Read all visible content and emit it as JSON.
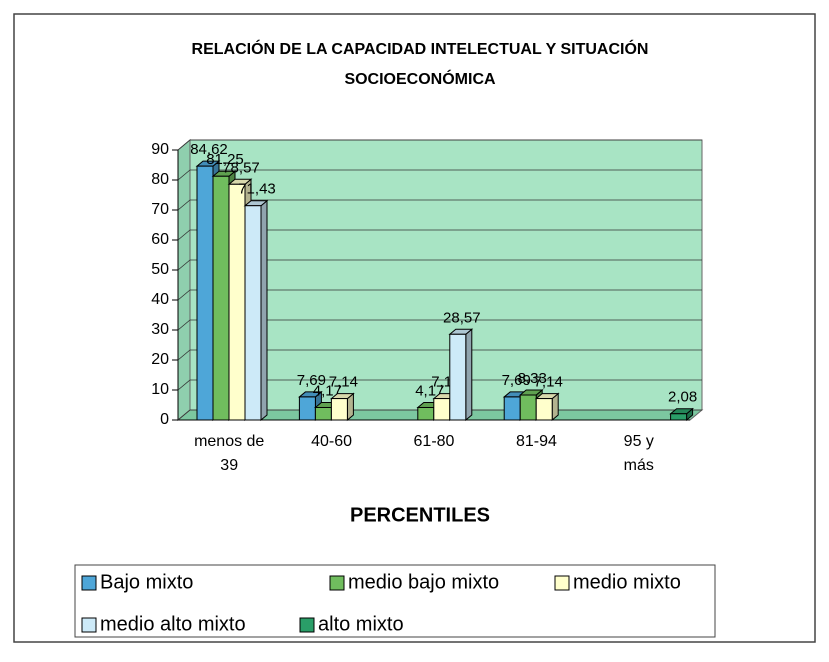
{
  "chart_data": {
    "type": "bar3d",
    "title": "RELACIÓN DE LA CAPACIDAD INTELECTUAL Y SITUACIÓN SOCIOECONÓMICA",
    "x_label": "PERCENTILES",
    "categories": [
      "menos de 39",
      "40-60",
      "61-80",
      "81-94",
      "95 y más"
    ],
    "series": [
      {
        "name": "Bajo mixto",
        "color": "#4ea6d8",
        "values": [
          84.62,
          7.69,
          null,
          7.69,
          null
        ],
        "value_labels": [
          "84,62",
          "7,69",
          null,
          "7,69",
          null
        ]
      },
      {
        "name": "medio bajo mixto",
        "color": "#70bd5e",
        "values": [
          81.25,
          4.17,
          4.17,
          8.33,
          null
        ],
        "value_labels": [
          "81,25",
          "4,17",
          "4,17",
          "8,33",
          null
        ]
      },
      {
        "name": "medio mixto",
        "color": "#ffffcc",
        "values": [
          78.57,
          7.14,
          7.14,
          7.14,
          null
        ],
        "value_labels": [
          "78,57",
          "7,14",
          "7,14",
          "7,14",
          null
        ]
      },
      {
        "name": "medio alto mixto",
        "color": "#cdeaf8",
        "values": [
          71.43,
          null,
          28.57,
          null,
          null
        ],
        "value_labels": [
          "71,43",
          null,
          "28,57",
          null,
          null
        ]
      },
      {
        "name": "alto mixto",
        "color": "#2a9e68",
        "values": [
          null,
          null,
          null,
          null,
          2.08
        ],
        "value_labels": [
          null,
          null,
          null,
          null,
          "2,08"
        ]
      }
    ],
    "ylim": [
      0,
      90
    ],
    "yticks": [
      0,
      10,
      20,
      30,
      40,
      50,
      60,
      70,
      80,
      90
    ],
    "grid": true,
    "wall_color": "#a8e4c4",
    "legend": "bottom"
  }
}
